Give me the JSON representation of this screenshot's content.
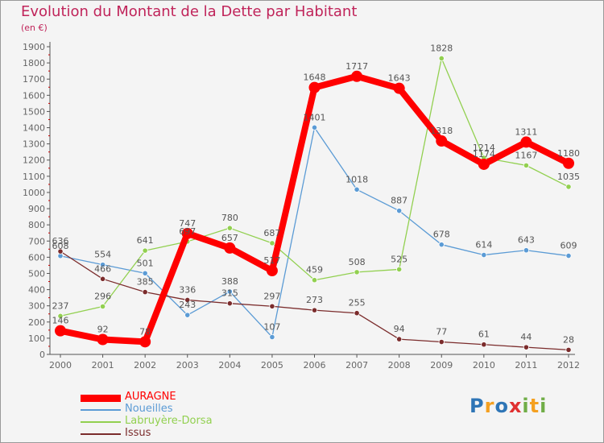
{
  "header": {
    "title": "Evolution du Montant de la Dette par Habitant",
    "unit": "(en €)"
  },
  "logo": {
    "letters": [
      "P",
      "r",
      "o",
      "x",
      "i",
      "t",
      "i"
    ]
  },
  "colors": {
    "title": "#c0245a",
    "background": "#f4f4f4",
    "axis_label": "#666666",
    "auragne": "#ff0000",
    "noueilles": "#5b9bd5",
    "labruyere": "#92d050",
    "issus": "#7b2c2c"
  },
  "chart_data": {
    "type": "line",
    "title": "Evolution du Montant de la Dette par Habitant",
    "subtitle": "(en €)",
    "xlabel": "",
    "ylabel": "",
    "x": [
      "2000",
      "2001",
      "2002",
      "2003",
      "2004",
      "2005",
      "2006",
      "2007",
      "2008",
      "2009",
      "2010",
      "2011",
      "2012"
    ],
    "ylim": [
      0,
      1900
    ],
    "yticks": [
      0,
      100,
      200,
      300,
      400,
      500,
      600,
      700,
      800,
      900,
      1000,
      1100,
      1200,
      1300,
      1400,
      1500,
      1600,
      1700,
      1800,
      1900
    ],
    "grid": false,
    "legend_position": "bottom-left",
    "series": [
      {
        "name": "AURAGNE",
        "color": "#ff0000",
        "values": [
          146,
          92,
          78,
          747,
          657,
          517,
          1648,
          1717,
          1643,
          1318,
          1174,
          1311,
          1180
        ]
      },
      {
        "name": "Noueilles",
        "color": "#5b9bd5",
        "values": [
          608,
          554,
          501,
          243,
          388,
          107,
          1401,
          1018,
          887,
          678,
          614,
          643,
          609
        ]
      },
      {
        "name": "Labruyère-Dorsa",
        "color": "#92d050",
        "values": [
          237,
          296,
          641,
          697,
          780,
          687,
          459,
          508,
          525,
          1828,
          1214,
          1167,
          1035
        ]
      },
      {
        "name": "Issus",
        "color": "#7b2c2c",
        "values": [
          636,
          466,
          385,
          336,
          315,
          297,
          273,
          255,
          94,
          77,
          61,
          44,
          28
        ]
      }
    ]
  }
}
